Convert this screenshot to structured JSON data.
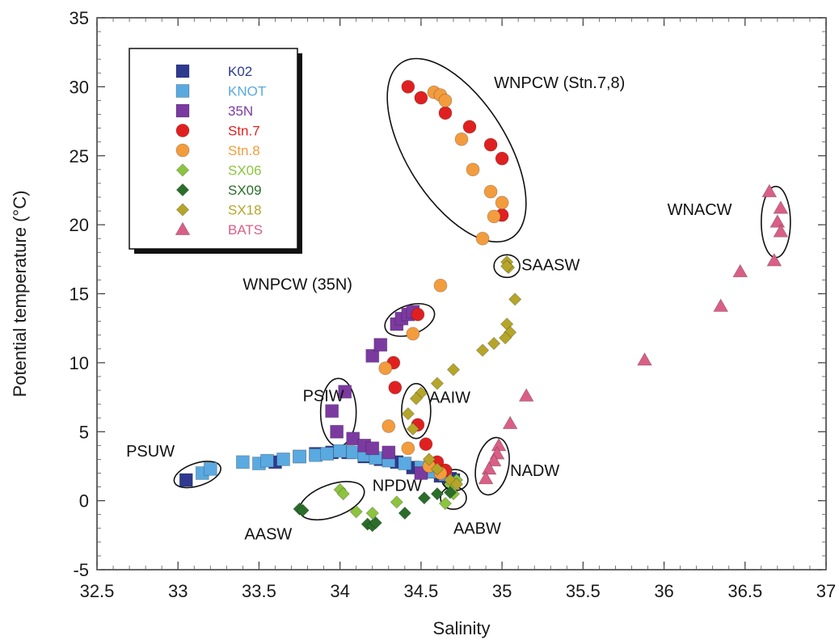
{
  "chart_data": {
    "type": "scatter",
    "xlabel": "Salinity",
    "ylabel": "Potential temperature (°C)",
    "xlim": [
      32.5,
      37
    ],
    "ylim": [
      -5,
      35
    ],
    "xticks": [
      32.5,
      33,
      33.5,
      34,
      34.5,
      35,
      35.5,
      36,
      36.5,
      37
    ],
    "xtick_labels": [
      "32.5",
      "33",
      "33.5",
      "34",
      "34.5",
      "35",
      "35.5",
      "36",
      "36.5",
      "37"
    ],
    "yticks": [
      -5,
      0,
      5,
      10,
      15,
      20,
      25,
      30,
      35
    ],
    "ytick_labels": [
      "-5",
      "0",
      "5",
      "10",
      "15",
      "20",
      "25",
      "30",
      "35"
    ],
    "grid": false,
    "legend_position": "top-left",
    "series": [
      {
        "name": "K02",
        "color": "#2e3a8f",
        "marker": "square",
        "points": [
          [
            33.05,
            1.5
          ],
          [
            33.6,
            2.8
          ],
          [
            33.75,
            3.2
          ],
          [
            33.85,
            3.4
          ],
          [
            33.95,
            3.5
          ],
          [
            34.05,
            3.5
          ],
          [
            34.15,
            3.2
          ],
          [
            34.25,
            3.0
          ],
          [
            34.35,
            2.8
          ],
          [
            34.45,
            2.4
          ],
          [
            34.55,
            2.1
          ],
          [
            34.62,
            1.8
          ],
          [
            34.68,
            1.6
          ],
          [
            34.7,
            1.5
          ]
        ]
      },
      {
        "name": "KNOT",
        "color": "#5aa9e0",
        "marker": "square",
        "points": [
          [
            33.15,
            2.0
          ],
          [
            33.2,
            2.3
          ],
          [
            33.4,
            2.8
          ],
          [
            33.5,
            2.7
          ],
          [
            33.55,
            2.9
          ],
          [
            33.65,
            3.0
          ],
          [
            33.75,
            3.2
          ],
          [
            33.85,
            3.3
          ],
          [
            33.92,
            3.4
          ],
          [
            34.0,
            3.6
          ],
          [
            34.08,
            3.5
          ],
          [
            34.15,
            3.3
          ],
          [
            34.22,
            3.1
          ],
          [
            34.3,
            2.9
          ],
          [
            34.4,
            2.7
          ],
          [
            34.5,
            2.4
          ],
          [
            34.58,
            2.1
          ],
          [
            34.65,
            1.9
          ]
        ]
      },
      {
        "name": "35N",
        "color": "#7b3aa0",
        "marker": "square",
        "points": [
          [
            33.95,
            6.5
          ],
          [
            33.98,
            5.0
          ],
          [
            34.03,
            7.9
          ],
          [
            34.08,
            4.5
          ],
          [
            34.15,
            4.0
          ],
          [
            34.2,
            3.8
          ],
          [
            34.3,
            3.5
          ],
          [
            34.2,
            10.5
          ],
          [
            34.25,
            11.3
          ],
          [
            34.35,
            12.8
          ],
          [
            34.38,
            13.2
          ],
          [
            34.42,
            13.5
          ],
          [
            34.45,
            13.7
          ],
          [
            34.5,
            2.0
          ]
        ]
      },
      {
        "name": "Stn.7",
        "color": "#e02020",
        "marker": "circle",
        "points": [
          [
            34.42,
            30.0
          ],
          [
            34.5,
            29.2
          ],
          [
            34.65,
            28.1
          ],
          [
            34.8,
            27.1
          ],
          [
            34.93,
            25.8
          ],
          [
            35.0,
            24.8
          ],
          [
            35.0,
            20.7
          ],
          [
            34.48,
            13.5
          ],
          [
            34.33,
            10.0
          ],
          [
            34.34,
            8.2
          ],
          [
            34.48,
            5.5
          ],
          [
            34.53,
            4.1
          ],
          [
            34.6,
            2.8
          ],
          [
            34.65,
            2.2
          ]
        ]
      },
      {
        "name": "Stn.8",
        "color": "#f39c3e",
        "marker": "circle",
        "points": [
          [
            34.58,
            29.6
          ],
          [
            34.62,
            29.4
          ],
          [
            34.65,
            29.0
          ],
          [
            34.75,
            26.2
          ],
          [
            34.82,
            24.0
          ],
          [
            34.93,
            22.4
          ],
          [
            35.0,
            21.6
          ],
          [
            34.95,
            20.6
          ],
          [
            34.88,
            19.0
          ],
          [
            34.62,
            15.6
          ],
          [
            34.45,
            12.1
          ],
          [
            34.28,
            9.6
          ],
          [
            34.3,
            5.4
          ],
          [
            34.42,
            3.8
          ],
          [
            34.55,
            2.5
          ],
          [
            34.62,
            2.0
          ]
        ]
      },
      {
        "name": "SX06",
        "color": "#8cc43e",
        "marker": "diamond",
        "points": [
          [
            34.0,
            0.8
          ],
          [
            34.02,
            0.5
          ],
          [
            34.1,
            -0.8
          ],
          [
            34.2,
            -0.9
          ],
          [
            34.35,
            -0.1
          ],
          [
            34.65,
            -0.2
          ],
          [
            34.7,
            0.5
          ],
          [
            34.68,
            1.2
          ],
          [
            34.72,
            1.5
          ]
        ]
      },
      {
        "name": "SX09",
        "color": "#2a6e2a",
        "marker": "diamond",
        "points": [
          [
            33.75,
            -0.6
          ],
          [
            33.77,
            -0.7
          ],
          [
            34.17,
            -1.7
          ],
          [
            34.2,
            -1.8
          ],
          [
            34.22,
            -1.6
          ],
          [
            34.4,
            -0.9
          ],
          [
            34.52,
            0.2
          ],
          [
            34.6,
            0.5
          ],
          [
            34.68,
            0.6
          ]
        ]
      },
      {
        "name": "SX18",
        "color": "#b5a52a",
        "marker": "diamond",
        "points": [
          [
            35.03,
            17.3
          ],
          [
            35.04,
            16.9
          ],
          [
            35.03,
            17.0
          ],
          [
            35.08,
            14.6
          ],
          [
            35.03,
            12.8
          ],
          [
            35.05,
            12.2
          ],
          [
            35.02,
            11.8
          ],
          [
            34.95,
            11.4
          ],
          [
            34.88,
            10.9
          ],
          [
            34.7,
            9.5
          ],
          [
            34.6,
            8.5
          ],
          [
            34.5,
            7.8
          ],
          [
            34.47,
            7.4
          ],
          [
            34.42,
            6.3
          ],
          [
            34.45,
            5.2
          ],
          [
            34.55,
            3.0
          ],
          [
            34.6,
            2.3
          ],
          [
            34.68,
            1.5
          ],
          [
            34.72,
            1.2
          ]
        ]
      },
      {
        "name": "BATS",
        "color": "#d95f86",
        "marker": "triangle",
        "points": [
          [
            36.65,
            22.4
          ],
          [
            36.72,
            21.2
          ],
          [
            36.7,
            20.2
          ],
          [
            36.72,
            19.5
          ],
          [
            36.68,
            17.4
          ],
          [
            36.47,
            16.6
          ],
          [
            36.35,
            14.1
          ],
          [
            35.88,
            10.2
          ],
          [
            35.15,
            7.6
          ],
          [
            35.05,
            5.6
          ],
          [
            34.98,
            4.0
          ],
          [
            34.97,
            3.4
          ],
          [
            34.95,
            2.9
          ],
          [
            34.92,
            2.3
          ],
          [
            34.9,
            1.6
          ]
        ]
      }
    ],
    "annotations": [
      {
        "text": "WNPCW (Stn.7,8)",
        "x": 34.95,
        "y": 29.9
      },
      {
        "text": "WNACW",
        "x": 36.02,
        "y": 20.7
      },
      {
        "text": "SAASW",
        "x": 35.12,
        "y": 16.7
      },
      {
        "text": "WNPCW (35N)",
        "x": 33.4,
        "y": 15.3
      },
      {
        "text": "PSIW",
        "x": 33.77,
        "y": 7.2
      },
      {
        "text": "AAIW",
        "x": 34.55,
        "y": 7.1
      },
      {
        "text": "PSUW",
        "x": 32.68,
        "y": 3.2
      },
      {
        "text": "NADW",
        "x": 35.05,
        "y": 1.8
      },
      {
        "text": "NPDW",
        "x": 34.2,
        "y": 0.7
      },
      {
        "text": "AASW",
        "x": 33.41,
        "y": -2.8
      },
      {
        "text": "AABW",
        "x": 34.7,
        "y": -2.4
      }
    ]
  }
}
